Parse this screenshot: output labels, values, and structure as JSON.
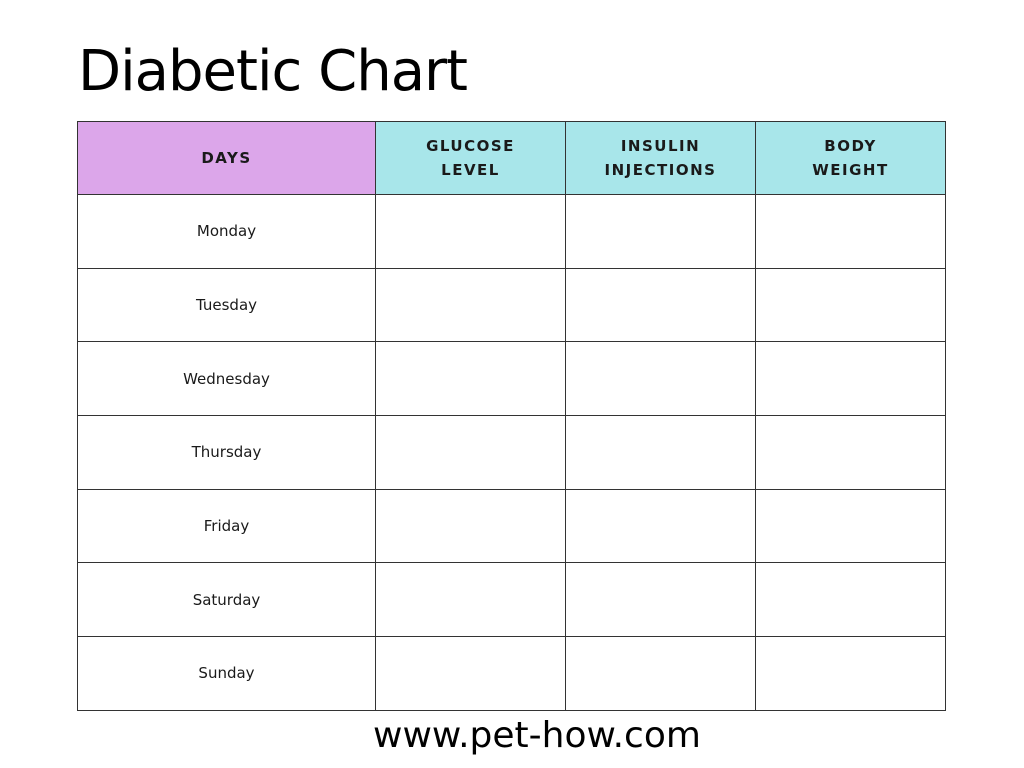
{
  "title": "Diabetic Chart",
  "colors": {
    "days_header": "#dca6ea",
    "measure_header": "#a8e6ea",
    "grid": "#333333"
  },
  "table": {
    "headers": [
      {
        "id": "days",
        "lines": [
          "DAYS"
        ]
      },
      {
        "id": "glucose",
        "lines": [
          "GLUCOSE",
          "LEVEL"
        ]
      },
      {
        "id": "insulin",
        "lines": [
          "INSULIN",
          "INJECTIONS"
        ]
      },
      {
        "id": "weight",
        "lines": [
          "BODY",
          "WEIGHT"
        ]
      }
    ],
    "rows": [
      {
        "day": "Monday"
      },
      {
        "day": "Tuesday"
      },
      {
        "day": "Wednesday"
      },
      {
        "day": "Thursday"
      },
      {
        "day": "Friday"
      },
      {
        "day": "Saturday"
      },
      {
        "day": "Sunday"
      }
    ]
  },
  "footer": "www.pet-how.com"
}
